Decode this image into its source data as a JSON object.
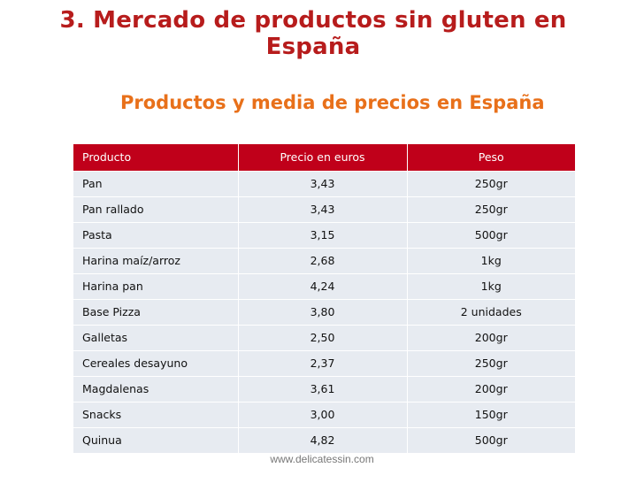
{
  "title": {
    "line1": "3. Mercado de productos sin gluten en",
    "line2": "España"
  },
  "subtitle": "Productos y media de precios en España",
  "table": {
    "headers": [
      "Producto",
      "Precio en euros",
      "Peso"
    ],
    "rows": [
      [
        "Pan",
        "3,43",
        "250gr"
      ],
      [
        "Pan rallado",
        "3,43",
        "250gr"
      ],
      [
        "Pasta",
        "3,15",
        "500gr"
      ],
      [
        "Harina maíz/arroz",
        "2,68",
        "1kg"
      ],
      [
        "Harina pan",
        "4,24",
        "1kg"
      ],
      [
        "Base Pizza",
        "3,80",
        "2 unidades"
      ],
      [
        "Galletas",
        "2,50",
        "200gr"
      ],
      [
        "Cereales desayuno",
        "2,37",
        "250gr"
      ],
      [
        "Magdalenas",
        "3,61",
        "200gr"
      ],
      [
        "Snacks",
        "3,00",
        "150gr"
      ],
      [
        "Quinua",
        "4,82",
        "500gr"
      ]
    ]
  },
  "colors": {
    "title": "#b71c1c",
    "subtitle": "#e8701a",
    "header_bg": "#c0001a",
    "row_bg": "#e7ebf1"
  },
  "watermark": "www.delicatessin.com"
}
